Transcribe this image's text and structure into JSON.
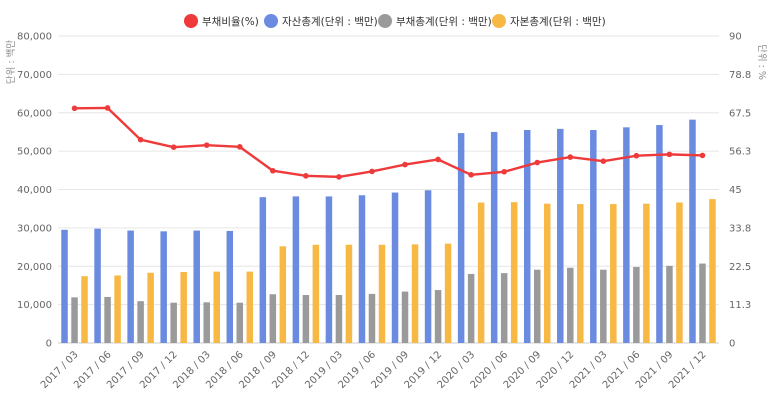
{
  "chart_data": {
    "type": "bar",
    "categories": [
      "2017 / 03",
      "2017 / 06",
      "2017 / 09",
      "2017 / 12",
      "2018 / 03",
      "2018 / 06",
      "2018 / 09",
      "2018 / 12",
      "2019 / 03",
      "2019 / 06",
      "2019 / 09",
      "2019 / 12",
      "2020 / 03",
      "2020 / 06",
      "2020 / 09",
      "2020 / 12",
      "2021 / 03",
      "2021 / 06",
      "2021 / 09",
      "2021 / 12"
    ],
    "ylabel_left": "단위 : 백만",
    "ylabel_right": "단위 : %",
    "ylim_left": [
      0,
      80000
    ],
    "ylim_right": [
      0,
      90
    ],
    "yticks_left": [
      "0",
      "10,000",
      "20,000",
      "30,000",
      "40,000",
      "50,000",
      "60,000",
      "70,000",
      "80,000"
    ],
    "yticks_right": [
      "0",
      "11.3",
      "22.5",
      "33.8",
      "45",
      "56.3",
      "67.5",
      "78.8",
      "90"
    ],
    "grid": true,
    "legend_position": "top",
    "series": [
      {
        "name": "부채비율(%)",
        "kind": "line",
        "axis": "right",
        "color": "#ee3a3a",
        "values": [
          68.8,
          68.9,
          59.6,
          57.4,
          58.0,
          57.5,
          50.5,
          49.0,
          48.7,
          50.3,
          52.3,
          53.8,
          49.3,
          50.2,
          52.9,
          54.5,
          53.3,
          54.9,
          55.3,
          55.0
        ]
      },
      {
        "name": "자산총계(단위 : 백만)",
        "kind": "bar",
        "axis": "left",
        "color": "#6b8be0",
        "values": [
          29500,
          29800,
          29300,
          29100,
          29300,
          29200,
          38000,
          38200,
          38200,
          38500,
          39200,
          39800,
          54700,
          55000,
          55500,
          55800,
          55500,
          56200,
          56800,
          58200
        ]
      },
      {
        "name": "부채총계(단위 : 백만)",
        "kind": "bar",
        "axis": "left",
        "color": "#9a9a9a",
        "values": [
          11900,
          12000,
          10900,
          10500,
          10600,
          10500,
          12700,
          12500,
          12500,
          12800,
          13400,
          13800,
          18000,
          18200,
          19100,
          19600,
          19100,
          19800,
          20100,
          20700
        ]
      },
      {
        "name": "자본총계(단위 : 백만)",
        "kind": "bar",
        "axis": "left",
        "color": "#f7b844",
        "values": [
          17400,
          17600,
          18300,
          18500,
          18600,
          18600,
          25200,
          25600,
          25600,
          25600,
          25700,
          25900,
          36600,
          36700,
          36300,
          36200,
          36200,
          36300,
          36600,
          37500
        ]
      }
    ]
  }
}
